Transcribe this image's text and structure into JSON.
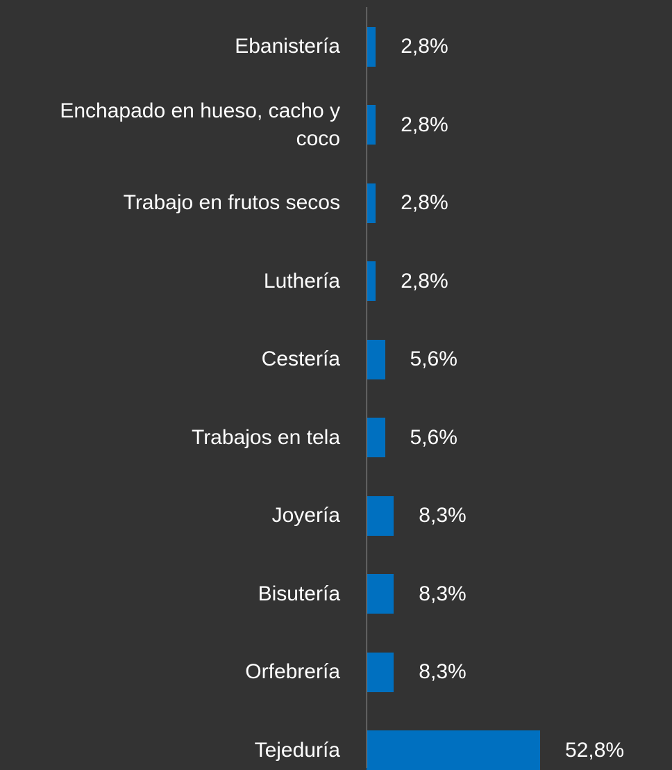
{
  "chart_data": {
    "type": "bar",
    "orientation": "horizontal",
    "categories": [
      "Ebanistería",
      "Enchapado en hueso, cacho y coco",
      "Trabajo en frutos secos",
      "Luthería",
      "Cestería",
      "Trabajos en tela",
      "Joyería",
      "Bisutería",
      "Orfebrería",
      "Tejeduría"
    ],
    "values": [
      2.8,
      2.8,
      2.8,
      2.8,
      5.6,
      5.6,
      8.3,
      8.3,
      8.3,
      52.8
    ],
    "value_labels": [
      "2,8%",
      "2,8%",
      "2,8%",
      "2,8%",
      "5,6%",
      "5,6%",
      "8,3%",
      "8,3%",
      "8,3%",
      "52,8%"
    ],
    "color": "#0070c0"
  }
}
